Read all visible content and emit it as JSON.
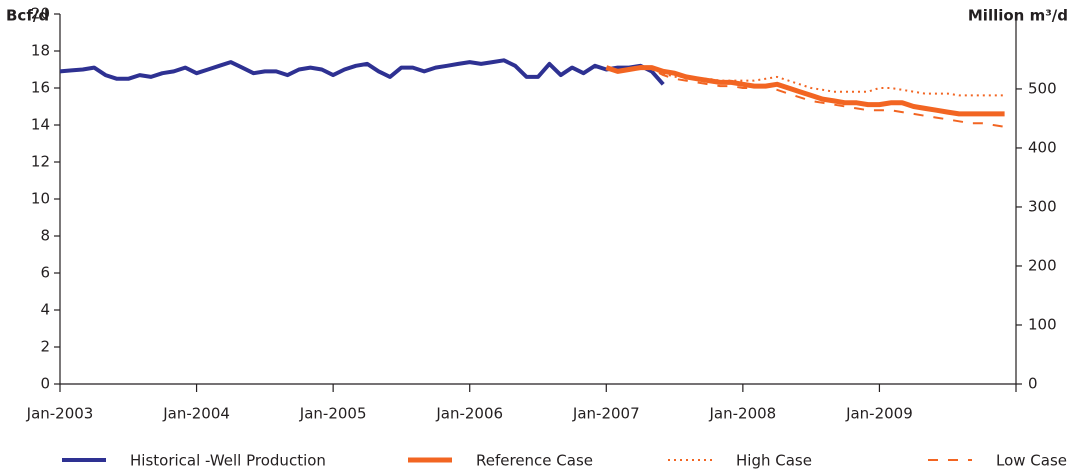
{
  "chart_data": {
    "type": "line",
    "ylabel": "Bcf/d",
    "y2label": "Million m³/d",
    "x": [
      "2003-01",
      "2003-02",
      "2003-03",
      "2003-04",
      "2003-05",
      "2003-06",
      "2003-07",
      "2003-08",
      "2003-09",
      "2003-10",
      "2003-11",
      "2003-12",
      "2004-01",
      "2004-02",
      "2004-03",
      "2004-04",
      "2004-05",
      "2004-06",
      "2004-07",
      "2004-08",
      "2004-09",
      "2004-10",
      "2004-11",
      "2004-12",
      "2005-01",
      "2005-02",
      "2005-03",
      "2005-04",
      "2005-05",
      "2005-06",
      "2005-07",
      "2005-08",
      "2005-09",
      "2005-10",
      "2005-11",
      "2005-12",
      "2006-01",
      "2006-02",
      "2006-03",
      "2006-04",
      "2006-05",
      "2006-06",
      "2006-07",
      "2006-08",
      "2006-09",
      "2006-10",
      "2006-11",
      "2006-12",
      "2007-01",
      "2007-02",
      "2007-03",
      "2007-04",
      "2007-05",
      "2007-06",
      "2007-07",
      "2007-08",
      "2007-09",
      "2007-10",
      "2007-11",
      "2007-12",
      "2008-01",
      "2008-02",
      "2008-03",
      "2008-04",
      "2008-05",
      "2008-06",
      "2008-07",
      "2008-08",
      "2008-09",
      "2008-10",
      "2008-11",
      "2008-12",
      "2009-01",
      "2009-02",
      "2009-03",
      "2009-04",
      "2009-05",
      "2009-06",
      "2009-07",
      "2009-08",
      "2009-09",
      "2009-10",
      "2009-11",
      "2009-12"
    ],
    "series": [
      {
        "name": "Historical -Well Production",
        "color": "#2e3192",
        "style": "solid",
        "width": 4,
        "values": [
          16.9,
          16.95,
          17.0,
          17.1,
          16.7,
          16.5,
          16.5,
          16.7,
          16.6,
          16.8,
          16.9,
          17.1,
          16.8,
          17.0,
          17.2,
          17.4,
          17.1,
          16.8,
          16.9,
          16.9,
          16.7,
          17.0,
          17.1,
          17.0,
          16.7,
          17.0,
          17.2,
          17.3,
          16.9,
          16.6,
          17.1,
          17.1,
          16.9,
          17.1,
          17.2,
          17.3,
          17.4,
          17.3,
          17.4,
          17.5,
          17.2,
          16.6,
          16.6,
          17.3,
          16.7,
          17.1,
          16.8,
          17.2,
          17.0,
          17.1,
          17.1,
          17.2,
          16.9,
          16.2,
          null,
          null,
          null,
          null,
          null,
          null,
          null,
          null,
          null,
          null,
          null,
          null,
          null,
          null,
          null,
          null,
          null,
          null,
          null,
          null,
          null,
          null,
          null,
          null,
          null,
          null,
          null,
          null,
          null,
          null
        ]
      },
      {
        "name": "Reference Case",
        "color": "#f26522",
        "style": "solid",
        "width": 5,
        "values": [
          null,
          null,
          null,
          null,
          null,
          null,
          null,
          null,
          null,
          null,
          null,
          null,
          null,
          null,
          null,
          null,
          null,
          null,
          null,
          null,
          null,
          null,
          null,
          null,
          null,
          null,
          null,
          null,
          null,
          null,
          null,
          null,
          null,
          null,
          null,
          null,
          null,
          null,
          null,
          null,
          null,
          null,
          null,
          null,
          null,
          null,
          null,
          null,
          17.1,
          16.9,
          17.0,
          17.1,
          17.1,
          16.9,
          16.8,
          16.6,
          16.5,
          16.4,
          16.3,
          16.3,
          16.2,
          16.1,
          16.1,
          16.2,
          16.0,
          15.8,
          15.6,
          15.4,
          15.3,
          15.2,
          15.2,
          15.1,
          15.1,
          15.2,
          15.2,
          15.0,
          14.9,
          14.8,
          14.7,
          14.6,
          14.6,
          14.6,
          14.6,
          14.6
        ]
      },
      {
        "name": "High Case",
        "color": "#f26522",
        "style": "dotted",
        "width": 2,
        "values": [
          null,
          null,
          null,
          null,
          null,
          null,
          null,
          null,
          null,
          null,
          null,
          null,
          null,
          null,
          null,
          null,
          null,
          null,
          null,
          null,
          null,
          null,
          null,
          null,
          null,
          null,
          null,
          null,
          null,
          null,
          null,
          null,
          null,
          null,
          null,
          null,
          null,
          null,
          null,
          null,
          null,
          null,
          null,
          null,
          null,
          null,
          null,
          null,
          null,
          null,
          null,
          17.2,
          17.0,
          16.8,
          16.6,
          16.6,
          16.5,
          16.5,
          16.4,
          16.4,
          16.4,
          16.4,
          16.5,
          16.6,
          16.4,
          16.2,
          16.0,
          15.9,
          15.8,
          15.8,
          15.8,
          15.8,
          16.0,
          16.0,
          15.9,
          15.8,
          15.7,
          15.7,
          15.7,
          15.6,
          15.6,
          15.6,
          15.6,
          15.6
        ]
      },
      {
        "name": "Low Case",
        "color": "#f26522",
        "style": "dashed",
        "width": 2,
        "values": [
          null,
          null,
          null,
          null,
          null,
          null,
          null,
          null,
          null,
          null,
          null,
          null,
          null,
          null,
          null,
          null,
          null,
          null,
          null,
          null,
          null,
          null,
          null,
          null,
          null,
          null,
          null,
          null,
          null,
          null,
          null,
          null,
          null,
          null,
          null,
          null,
          null,
          null,
          null,
          null,
          null,
          null,
          null,
          null,
          null,
          null,
          null,
          null,
          null,
          null,
          null,
          17.2,
          17.0,
          16.7,
          16.5,
          16.4,
          16.3,
          16.2,
          16.1,
          16.1,
          16.0,
          16.0,
          16.1,
          15.9,
          15.7,
          15.5,
          15.3,
          15.2,
          15.1,
          15.0,
          14.9,
          14.8,
          14.8,
          14.8,
          14.7,
          14.6,
          14.5,
          14.4,
          14.3,
          14.2,
          14.1,
          14.1,
          14.0,
          13.9
        ]
      }
    ],
    "xlim": [
      "2003-01",
      "2010-01"
    ],
    "xticks": [
      {
        "value": "2003-01",
        "label": "Jan-2003"
      },
      {
        "value": "2004-01",
        "label": "Jan-2004"
      },
      {
        "value": "2005-01",
        "label": "Jan-2005"
      },
      {
        "value": "2006-01",
        "label": "Jan-2006"
      },
      {
        "value": "2007-01",
        "label": "Jan-2007"
      },
      {
        "value": "2008-01",
        "label": "Jan-2008"
      },
      {
        "value": "2009-01",
        "label": "Jan-2009"
      },
      {
        "value": "2010-01",
        "label": ""
      }
    ],
    "ylim": [
      0,
      20
    ],
    "yticks": [
      0,
      2,
      4,
      6,
      8,
      10,
      12,
      14,
      16,
      18,
      20
    ],
    "y2lim": [
      0,
      627
    ],
    "y2ticks": [
      0,
      100,
      200,
      300,
      400,
      500
    ],
    "grid": false,
    "legend": "bottom"
  }
}
